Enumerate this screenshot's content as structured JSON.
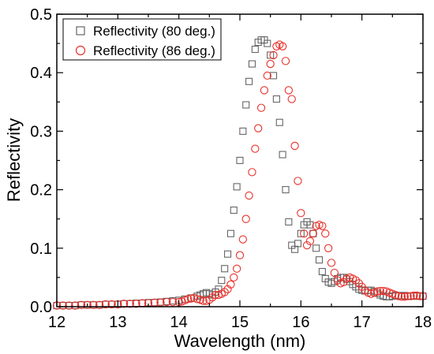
{
  "chart_data": {
    "type": "scatter",
    "xlabel": "Wavelength (nm)",
    "ylabel": "Reflectivity",
    "xlim": [
      12,
      18
    ],
    "ylim": [
      0,
      0.5
    ],
    "x_ticks": [
      "12",
      "13",
      "14",
      "15",
      "16",
      "17",
      "18"
    ],
    "y_ticks": [
      "0.0",
      "0.1",
      "0.2",
      "0.3",
      "0.4",
      "0.5"
    ],
    "grid": false,
    "legend_position": "top-left",
    "series": [
      {
        "name": "Reflectivity (80 deg.)",
        "marker": "square",
        "color": "#666666",
        "points": [
          [
            12.0,
            0.002
          ],
          [
            12.1,
            0.002
          ],
          [
            12.2,
            0.002
          ],
          [
            12.3,
            0.002
          ],
          [
            12.4,
            0.003
          ],
          [
            12.5,
            0.003
          ],
          [
            12.6,
            0.003
          ],
          [
            12.7,
            0.003
          ],
          [
            12.8,
            0.004
          ],
          [
            12.9,
            0.004
          ],
          [
            13.0,
            0.004
          ],
          [
            13.1,
            0.005
          ],
          [
            13.2,
            0.005
          ],
          [
            13.3,
            0.006
          ],
          [
            13.4,
            0.006
          ],
          [
            13.5,
            0.007
          ],
          [
            13.6,
            0.007
          ],
          [
            13.7,
            0.008
          ],
          [
            13.8,
            0.009
          ],
          [
            13.9,
            0.01
          ],
          [
            14.0,
            0.011
          ],
          [
            14.1,
            0.013
          ],
          [
            14.2,
            0.015
          ],
          [
            14.3,
            0.018
          ],
          [
            14.35,
            0.02
          ],
          [
            14.4,
            0.022
          ],
          [
            14.45,
            0.024
          ],
          [
            14.5,
            0.022
          ],
          [
            14.55,
            0.02
          ],
          [
            14.6,
            0.025
          ],
          [
            14.65,
            0.03
          ],
          [
            14.7,
            0.045
          ],
          [
            14.75,
            0.065
          ],
          [
            14.8,
            0.09
          ],
          [
            14.85,
            0.125
          ],
          [
            14.9,
            0.165
          ],
          [
            14.95,
            0.205
          ],
          [
            15.0,
            0.25
          ],
          [
            15.05,
            0.3
          ],
          [
            15.1,
            0.345
          ],
          [
            15.15,
            0.385
          ],
          [
            15.2,
            0.415
          ],
          [
            15.25,
            0.44
          ],
          [
            15.3,
            0.452
          ],
          [
            15.35,
            0.456
          ],
          [
            15.4,
            0.456
          ],
          [
            15.45,
            0.45
          ],
          [
            15.5,
            0.43
          ],
          [
            15.55,
            0.395
          ],
          [
            15.6,
            0.355
          ],
          [
            15.65,
            0.315
          ],
          [
            15.7,
            0.26
          ],
          [
            15.75,
            0.2
          ],
          [
            15.8,
            0.145
          ],
          [
            15.85,
            0.105
          ],
          [
            15.9,
            0.098
          ],
          [
            15.95,
            0.108
          ],
          [
            16.0,
            0.125
          ],
          [
            16.05,
            0.14
          ],
          [
            16.1,
            0.145
          ],
          [
            16.15,
            0.14
          ],
          [
            16.2,
            0.125
          ],
          [
            16.25,
            0.1
          ],
          [
            16.3,
            0.08
          ],
          [
            16.35,
            0.06
          ],
          [
            16.4,
            0.048
          ],
          [
            16.45,
            0.042
          ],
          [
            16.5,
            0.04
          ],
          [
            16.55,
            0.043
          ],
          [
            16.6,
            0.048
          ],
          [
            16.65,
            0.05
          ],
          [
            16.7,
            0.05
          ],
          [
            16.75,
            0.047
          ],
          [
            16.8,
            0.043
          ],
          [
            16.85,
            0.038
          ],
          [
            16.9,
            0.034
          ],
          [
            16.95,
            0.03
          ],
          [
            17.0,
            0.028
          ],
          [
            17.05,
            0.027
          ],
          [
            17.1,
            0.028
          ],
          [
            17.15,
            0.028
          ],
          [
            17.2,
            0.026
          ],
          [
            17.25,
            0.023
          ],
          [
            17.3,
            0.02
          ],
          [
            17.35,
            0.018
          ],
          [
            17.4,
            0.017
          ],
          [
            17.45,
            0.017
          ],
          [
            17.5,
            0.018
          ],
          [
            17.55,
            0.019
          ],
          [
            17.6,
            0.019
          ],
          [
            17.65,
            0.019
          ],
          [
            17.7,
            0.019
          ],
          [
            17.75,
            0.018
          ],
          [
            17.8,
            0.018
          ],
          [
            17.85,
            0.018
          ],
          [
            17.9,
            0.018
          ],
          [
            17.95,
            0.018
          ],
          [
            18.0,
            0.018
          ]
        ]
      },
      {
        "name": "Reflectivity (86 deg.)",
        "marker": "circle",
        "color": "#e8302a",
        "points": [
          [
            12.0,
            0.002
          ],
          [
            12.1,
            0.002
          ],
          [
            12.2,
            0.002
          ],
          [
            12.3,
            0.002
          ],
          [
            12.4,
            0.003
          ],
          [
            12.5,
            0.003
          ],
          [
            12.6,
            0.003
          ],
          [
            12.7,
            0.003
          ],
          [
            12.8,
            0.004
          ],
          [
            12.9,
            0.004
          ],
          [
            13.0,
            0.004
          ],
          [
            13.1,
            0.005
          ],
          [
            13.2,
            0.005
          ],
          [
            13.3,
            0.005
          ],
          [
            13.4,
            0.006
          ],
          [
            13.5,
            0.006
          ],
          [
            13.6,
            0.007
          ],
          [
            13.7,
            0.007
          ],
          [
            13.8,
            0.008
          ],
          [
            13.9,
            0.008
          ],
          [
            14.0,
            0.008
          ],
          [
            14.05,
            0.009
          ],
          [
            14.1,
            0.011
          ],
          [
            14.15,
            0.013
          ],
          [
            14.2,
            0.014
          ],
          [
            14.25,
            0.015
          ],
          [
            14.3,
            0.013
          ],
          [
            14.35,
            0.012
          ],
          [
            14.4,
            0.01
          ],
          [
            14.45,
            0.01
          ],
          [
            14.5,
            0.012
          ],
          [
            14.55,
            0.016
          ],
          [
            14.6,
            0.02
          ],
          [
            14.65,
            0.02
          ],
          [
            14.7,
            0.022
          ],
          [
            14.75,
            0.025
          ],
          [
            14.8,
            0.03
          ],
          [
            14.85,
            0.038
          ],
          [
            14.9,
            0.05
          ],
          [
            14.95,
            0.065
          ],
          [
            15.0,
            0.088
          ],
          [
            15.05,
            0.115
          ],
          [
            15.1,
            0.15
          ],
          [
            15.15,
            0.19
          ],
          [
            15.2,
            0.23
          ],
          [
            15.25,
            0.27
          ],
          [
            15.3,
            0.305
          ],
          [
            15.35,
            0.34
          ],
          [
            15.4,
            0.37
          ],
          [
            15.45,
            0.395
          ],
          [
            15.5,
            0.415
          ],
          [
            15.55,
            0.43
          ],
          [
            15.6,
            0.445
          ],
          [
            15.65,
            0.448
          ],
          [
            15.7,
            0.445
          ],
          [
            15.75,
            0.42
          ],
          [
            15.8,
            0.37
          ],
          [
            15.85,
            0.355
          ],
          [
            15.9,
            0.275
          ],
          [
            15.95,
            0.215
          ],
          [
            16.0,
            0.16
          ],
          [
            16.05,
            0.125
          ],
          [
            16.1,
            0.105
          ],
          [
            16.15,
            0.112
          ],
          [
            16.2,
            0.125
          ],
          [
            16.25,
            0.138
          ],
          [
            16.3,
            0.14
          ],
          [
            16.35,
            0.138
          ],
          [
            16.4,
            0.125
          ],
          [
            16.45,
            0.1
          ],
          [
            16.5,
            0.075
          ],
          [
            16.55,
            0.058
          ],
          [
            16.6,
            0.045
          ],
          [
            16.65,
            0.04
          ],
          [
            16.7,
            0.042
          ],
          [
            16.75,
            0.048
          ],
          [
            16.8,
            0.05
          ],
          [
            16.85,
            0.048
          ],
          [
            16.9,
            0.045
          ],
          [
            16.95,
            0.04
          ],
          [
            17.0,
            0.034
          ],
          [
            17.05,
            0.028
          ],
          [
            17.1,
            0.024
          ],
          [
            17.15,
            0.022
          ],
          [
            17.2,
            0.024
          ],
          [
            17.25,
            0.026
          ],
          [
            17.3,
            0.027
          ],
          [
            17.35,
            0.027
          ],
          [
            17.4,
            0.026
          ],
          [
            17.45,
            0.024
          ],
          [
            17.5,
            0.022
          ],
          [
            17.55,
            0.02
          ],
          [
            17.6,
            0.018
          ],
          [
            17.65,
            0.017
          ],
          [
            17.7,
            0.017
          ],
          [
            17.75,
            0.018
          ],
          [
            17.8,
            0.018
          ],
          [
            17.85,
            0.019
          ],
          [
            17.9,
            0.019
          ],
          [
            17.95,
            0.018
          ],
          [
            18.0,
            0.018
          ]
        ]
      }
    ]
  }
}
